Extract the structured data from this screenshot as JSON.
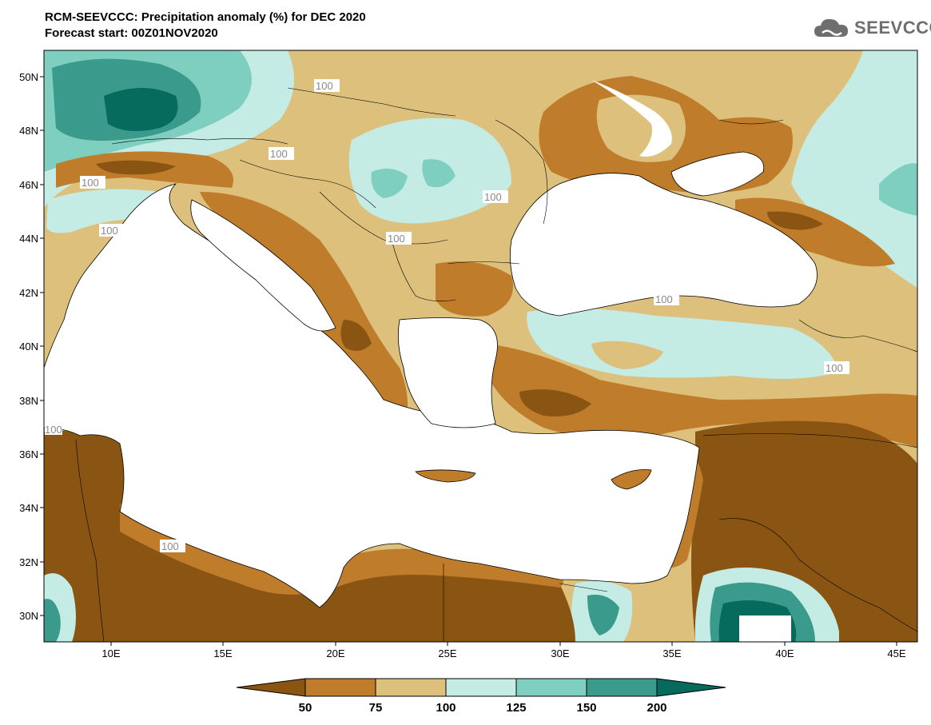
{
  "header": {
    "title_line1": "RCM-SEEVCCC: Precipitation anomaly (%) for DEC 2020",
    "title_line2": "Forecast start: 00Z01NOV2020"
  },
  "logo": {
    "text": "SEEVCCC",
    "icon": "cloud-icon"
  },
  "map": {
    "lat_labels": [
      "50N",
      "48N",
      "46N",
      "44N",
      "42N",
      "40N",
      "38N",
      "36N",
      "34N",
      "32N",
      "30N"
    ],
    "lon_labels": [
      "10E",
      "15E",
      "20E",
      "25E",
      "30E",
      "35E",
      "40E",
      "45E"
    ],
    "contour_labels": [
      "100",
      "100",
      "100",
      "100",
      "100",
      "100",
      "100",
      "100",
      "100",
      "100"
    ]
  },
  "colorbar": {
    "levels": [
      "50",
      "75",
      "100",
      "125",
      "150",
      "200"
    ],
    "colors": [
      "#8a5512",
      "#bf7d2b",
      "#dcc07c",
      "#c4ebe4",
      "#7ecfc0",
      "#3a9a8c",
      "#066b5d"
    ]
  },
  "colors": {
    "very_dry": "#8a5512",
    "dry": "#bf7d2b",
    "slightly_dry": "#dcc07c",
    "slightly_wet": "#c4ebe4",
    "wet": "#7ecfc0",
    "very_wet": "#3a9a8c",
    "extremely_wet": "#066b5d",
    "sea": "#ffffff"
  }
}
